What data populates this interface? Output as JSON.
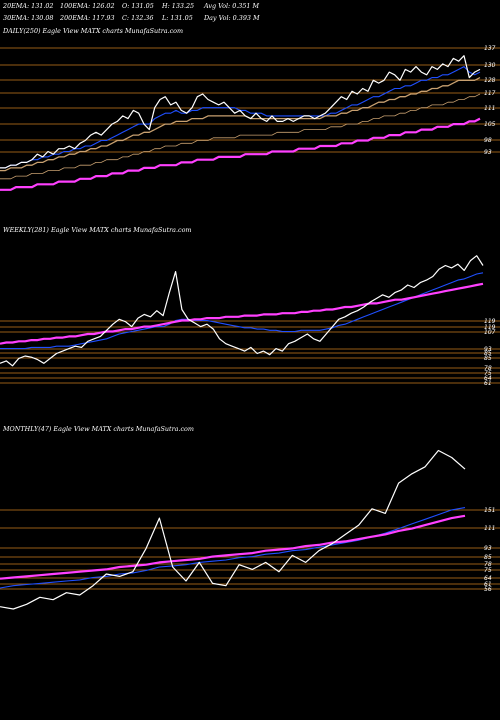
{
  "stats": {
    "row1": [
      "20EMA: 131.02",
      "100EMA: 126.02",
      "O: 131.05",
      "H: 133.25",
      "Avg Vol: 0.351 M"
    ],
    "row2": [
      "30EMA: 130.08",
      "200EMA: 117.93",
      "C: 132.36",
      "L: 131.05",
      "Day Vol: 0.393 M"
    ]
  },
  "colors": {
    "background": "#000000",
    "price": "#ffffff",
    "ema_fast": "#1f4fff",
    "ema_long": "#ff40ff",
    "grid": "#c87a1e",
    "ema_other": "#c8a070"
  },
  "chart_data": [
    {
      "type": "line",
      "title": "DAILY(250) Eagle  View  MATX  charts MunafaSutra.com",
      "yticks": [
        "137",
        "130",
        "128",
        "117",
        "111",
        "105",
        "98",
        "93"
      ],
      "ylim": [
        85,
        142
      ],
      "price": [
        96,
        96,
        97,
        97,
        98,
        98,
        99,
        101,
        100,
        102,
        101,
        103,
        103,
        104,
        103,
        105,
        106,
        108,
        109,
        108,
        110,
        112,
        113,
        115,
        114,
        117,
        116,
        112,
        110,
        118,
        121,
        122,
        119,
        120,
        117,
        116,
        118,
        122,
        123,
        121,
        120,
        119,
        120,
        118,
        116,
        117,
        115,
        114,
        116,
        114,
        113,
        115,
        113,
        113,
        114,
        113,
        114,
        115,
        115,
        114,
        115,
        116,
        118,
        120,
        122,
        121,
        124,
        123,
        125,
        124,
        128,
        127,
        128,
        131,
        130,
        128,
        132,
        131,
        133,
        131,
        130,
        133,
        132,
        134,
        133,
        136,
        135,
        137,
        129,
        131,
        132
      ],
      "series": [
        {
          "role": "ema_fast",
          "values": [
            96,
            96,
            97,
            97,
            98,
            98,
            99,
            99,
            100,
            100,
            101,
            101,
            102,
            102,
            103,
            103,
            104,
            104,
            105,
            106,
            106,
            107,
            108,
            109,
            110,
            111,
            112,
            112,
            112,
            114,
            115,
            116,
            116,
            117,
            116,
            116,
            117,
            117,
            118,
            118,
            118,
            118,
            118,
            118,
            118,
            117,
            117,
            116,
            116,
            116,
            115,
            115,
            115,
            115,
            115,
            115,
            115,
            115,
            115,
            115,
            115,
            115,
            116,
            116,
            117,
            118,
            119,
            119,
            120,
            121,
            122,
            122,
            123,
            124,
            125,
            125,
            126,
            126,
            127,
            128,
            128,
            129,
            129,
            130,
            130,
            131,
            132,
            133,
            131,
            130,
            131
          ]
        },
        {
          "role": "ema_mid",
          "values": [
            95,
            95,
            96,
            96,
            96,
            97,
            97,
            98,
            98,
            99,
            99,
            100,
            100,
            101,
            101,
            102,
            102,
            103,
            103,
            104,
            104,
            105,
            106,
            106,
            107,
            108,
            108,
            109,
            109,
            110,
            111,
            112,
            112,
            113,
            113,
            113,
            114,
            114,
            114,
            115,
            115,
            115,
            115,
            115,
            115,
            115,
            115,
            114,
            114,
            114,
            114,
            114,
            114,
            114,
            114,
            114,
            114,
            114,
            114,
            114,
            114,
            115,
            115,
            115,
            116,
            116,
            117,
            117,
            118,
            118,
            119,
            120,
            120,
            121,
            121,
            122,
            122,
            123,
            123,
            124,
            124,
            125,
            125,
            126,
            126,
            127,
            128,
            128,
            128,
            128,
            129
          ]
        },
        {
          "role": "ema_100",
          "values": [
            92,
            92,
            92,
            93,
            93,
            93,
            94,
            94,
            94,
            95,
            95,
            95,
            96,
            96,
            96,
            97,
            97,
            97,
            98,
            98,
            99,
            99,
            99,
            100,
            100,
            101,
            101,
            102,
            102,
            103,
            103,
            104,
            104,
            104,
            105,
            105,
            105,
            106,
            106,
            106,
            107,
            107,
            107,
            107,
            107,
            108,
            108,
            108,
            108,
            108,
            108,
            108,
            109,
            109,
            109,
            109,
            109,
            110,
            110,
            110,
            110,
            110,
            111,
            111,
            111,
            112,
            112,
            112,
            113,
            113,
            114,
            114,
            115,
            115,
            115,
            116,
            116,
            117,
            117,
            118,
            118,
            119,
            119,
            119,
            120,
            120,
            121,
            121,
            122,
            122,
            123
          ]
        },
        {
          "role": "ema_long",
          "values": [
            88,
            88,
            88,
            89,
            89,
            89,
            89,
            90,
            90,
            90,
            90,
            91,
            91,
            91,
            91,
            92,
            92,
            92,
            93,
            93,
            93,
            94,
            94,
            94,
            95,
            95,
            95,
            96,
            96,
            96,
            97,
            97,
            97,
            97,
            98,
            98,
            98,
            99,
            99,
            99,
            99,
            100,
            100,
            100,
            100,
            100,
            101,
            101,
            101,
            101,
            101,
            102,
            102,
            102,
            102,
            102,
            103,
            103,
            103,
            103,
            104,
            104,
            104,
            104,
            105,
            105,
            105,
            106,
            106,
            106,
            107,
            107,
            107,
            108,
            108,
            108,
            109,
            109,
            109,
            110,
            110,
            110,
            111,
            111,
            111,
            112,
            112,
            112,
            113,
            113,
            114
          ]
        }
      ]
    },
    {
      "type": "line",
      "title": "WEEKLY(281) Eagle  View  MATX  charts MunafaSutra.com",
      "yticks": [
        "119",
        "119",
        "107",
        "93",
        "85",
        "85",
        "78",
        "75",
        "64",
        "61"
      ],
      "ylim": [
        30,
        160
      ],
      "price": [
        60,
        62,
        58,
        64,
        66,
        65,
        63,
        60,
        64,
        68,
        70,
        72,
        74,
        73,
        78,
        80,
        82,
        87,
        92,
        96,
        94,
        90,
        97,
        100,
        98,
        103,
        99,
        118,
        135,
        104,
        96,
        93,
        90,
        92,
        88,
        80,
        76,
        74,
        72,
        70,
        73,
        68,
        70,
        67,
        72,
        70,
        76,
        78,
        81,
        84,
        80,
        78,
        84,
        90,
        96,
        98,
        101,
        103,
        106,
        110,
        113,
        116,
        114,
        118,
        120,
        124,
        122,
        126,
        128,
        131,
        137,
        140,
        138,
        141,
        136,
        144,
        148,
        140
      ],
      "series": [
        {
          "role": "ema_fast",
          "values": [
            72,
            72,
            72,
            72,
            72,
            73,
            73,
            73,
            73,
            74,
            74,
            74,
            75,
            76,
            77,
            78,
            79,
            80,
            82,
            84,
            85,
            86,
            87,
            88,
            89,
            90,
            90,
            92,
            95,
            96,
            96,
            95,
            95,
            95,
            94,
            93,
            92,
            91,
            90,
            89,
            89,
            88,
            88,
            87,
            87,
            86,
            86,
            86,
            87,
            87,
            87,
            87,
            88,
            89,
            91,
            92,
            94,
            96,
            98,
            100,
            102,
            104,
            106,
            108,
            110,
            112,
            114,
            116,
            118,
            120,
            122,
            124,
            126,
            128,
            129,
            131,
            133,
            134
          ]
        },
        {
          "role": "ema_long",
          "values": [
            76,
            77,
            77,
            78,
            78,
            79,
            79,
            80,
            80,
            81,
            81,
            82,
            82,
            83,
            84,
            84,
            85,
            86,
            86,
            87,
            88,
            88,
            89,
            90,
            90,
            91,
            92,
            93,
            94,
            95,
            95,
            96,
            96,
            97,
            97,
            97,
            98,
            98,
            98,
            99,
            99,
            99,
            100,
            100,
            100,
            101,
            101,
            101,
            102,
            102,
            103,
            103,
            104,
            104,
            105,
            106,
            106,
            107,
            108,
            109,
            109,
            110,
            111,
            112,
            112,
            113,
            114,
            115,
            116,
            117,
            118,
            119,
            120,
            121,
            122,
            123,
            124,
            125
          ]
        }
      ]
    },
    {
      "type": "line",
      "title": "MONTHLY(47) Eagle  View  MATX  charts MunafaSutra.com",
      "yticks": [
        "151",
        "111",
        "93",
        "85",
        "78",
        "75",
        "64",
        "61",
        "56"
      ],
      "ylim": [
        30,
        175
      ],
      "price": [
        32,
        30,
        34,
        40,
        38,
        44,
        42,
        50,
        60,
        58,
        62,
        82,
        108,
        66,
        54,
        70,
        52,
        50,
        68,
        64,
        70,
        62,
        76,
        70,
        80,
        86,
        94,
        102,
        116,
        112,
        138,
        146,
        152,
        166,
        160,
        150
      ],
      "series": [
        {
          "role": "ema_fast",
          "values": [
            48,
            50,
            51,
            52,
            53,
            54,
            55,
            57,
            58,
            60,
            61,
            63,
            66,
            67,
            68,
            70,
            71,
            72,
            74,
            75,
            77,
            78,
            80,
            81,
            83,
            85,
            87,
            89,
            92,
            95,
            99,
            103,
            107,
            111,
            115,
            117
          ]
        },
        {
          "role": "ema_long",
          "values": [
            56,
            57,
            58,
            59,
            60,
            61,
            62,
            63,
            64,
            66,
            67,
            68,
            70,
            71,
            72,
            73,
            75,
            76,
            77,
            78,
            80,
            81,
            82,
            84,
            85,
            87,
            88,
            90,
            92,
            94,
            97,
            99,
            102,
            105,
            108,
            110
          ]
        }
      ]
    }
  ]
}
